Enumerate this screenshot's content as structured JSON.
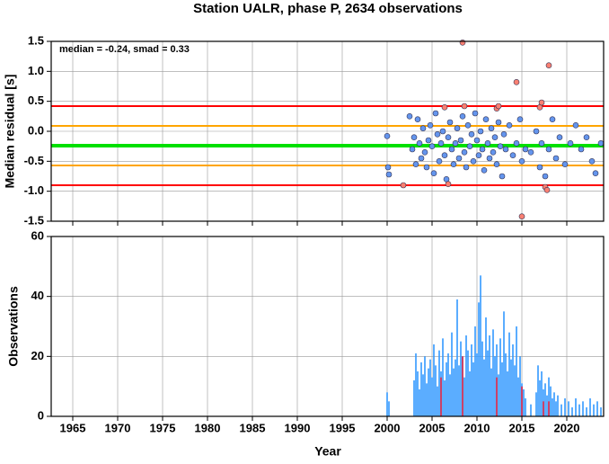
{
  "chart_data": [
    {
      "type": "scatter",
      "title": "Station UALR, phase P, 2634 observations",
      "ylabel": "Median residual [s]",
      "annotation": "median = -0.24, smad = 0.33",
      "xlim": [
        1962.6,
        2024.1
      ],
      "xticks": [
        1965,
        1970,
        1975,
        1980,
        1985,
        1990,
        1995,
        2000,
        2005,
        2010,
        2015,
        2020
      ],
      "ylim": [
        -1.5,
        1.5
      ],
      "yticks": [
        {
          "value": -1.5,
          "label": "-1.5"
        },
        {
          "value": -1,
          "label": "-1.0"
        },
        -0.5,
        {
          "value": 0,
          "label": "0.0"
        },
        0.5,
        {
          "value": 1,
          "label": "1.0"
        },
        1.5
      ],
      "grid": true,
      "reference_lines": [
        {
          "value": 0.42,
          "color": "#ff0000"
        },
        {
          "value": 0.09,
          "color": "#ffa500"
        },
        {
          "value": -0.24,
          "color": "#00e000"
        },
        {
          "value": -0.57,
          "color": "#ffa500"
        },
        {
          "value": -0.9,
          "color": "#ff0000"
        }
      ],
      "series": [
        {
          "color": "#6495ed",
          "x": [
            2000.0,
            2000.1,
            2000.2,
            2002.5,
            2002.8,
            2003.0,
            2003.2,
            2003.4,
            2003.6,
            2003.8,
            2004.0,
            2004.2,
            2004.4,
            2004.6,
            2004.8,
            2005.0,
            2005.2,
            2005.4,
            2005.6,
            2005.8,
            2006.0,
            2006.2,
            2006.4,
            2006.6,
            2006.8,
            2007.0,
            2007.2,
            2007.4,
            2007.6,
            2007.8,
            2008.0,
            2008.2,
            2008.4,
            2008.6,
            2008.8,
            2009.0,
            2009.2,
            2009.4,
            2009.6,
            2009.8,
            2010.0,
            2010.2,
            2010.4,
            2010.6,
            2010.8,
            2011.0,
            2011.2,
            2011.4,
            2011.6,
            2011.8,
            2012.0,
            2012.2,
            2012.4,
            2012.6,
            2012.8,
            2013.0,
            2013.2,
            2013.6,
            2014.0,
            2014.4,
            2014.8,
            2015.0,
            2015.4,
            2016.0,
            2016.6,
            2017.0,
            2017.2,
            2017.6,
            2018.0,
            2018.4,
            2018.8,
            2019.2,
            2019.8,
            2020.4,
            2021.0,
            2021.6,
            2022.2,
            2022.8,
            2023.2,
            2023.8
          ],
          "values": [
            -0.08,
            -0.6,
            -0.72,
            0.25,
            -0.3,
            -0.1,
            -0.55,
            0.2,
            -0.2,
            -0.45,
            0.05,
            -0.35,
            -0.6,
            -0.15,
            0.1,
            -0.25,
            -0.7,
            0.3,
            -0.05,
            -0.5,
            -0.2,
            0.0,
            -0.4,
            -0.8,
            -0.1,
            0.15,
            -0.3,
            -0.55,
            -0.2,
            0.05,
            -0.45,
            -0.15,
            0.25,
            -0.35,
            -0.6,
            0.1,
            -0.25,
            -0.05,
            -0.5,
            0.3,
            -0.15,
            -0.4,
            0.0,
            -0.3,
            -0.65,
            0.2,
            -0.2,
            -0.45,
            0.05,
            -0.35,
            -0.1,
            -0.55,
            0.15,
            -0.25,
            -0.75,
            -0.05,
            -0.3,
            0.1,
            -0.4,
            -0.2,
            0.2,
            -0.5,
            -0.3,
            -0.35,
            0.0,
            -0.6,
            -0.2,
            -0.75,
            -0.3,
            0.2,
            -0.45,
            -0.1,
            -0.55,
            -0.2,
            0.1,
            -0.3,
            -0.1,
            -0.5,
            -0.7,
            -0.2
          ]
        },
        {
          "color": "#fa8072",
          "x": [
            2001.8,
            2006.4,
            2006.8,
            2008.4,
            2008.6,
            2012.2,
            2012.4,
            2014.4,
            2015.0,
            2017.0,
            2017.2,
            2017.6,
            2017.8,
            2018.0
          ],
          "values": [
            -0.9,
            0.4,
            -0.88,
            1.48,
            0.42,
            0.38,
            0.42,
            0.82,
            -1.42,
            0.4,
            0.48,
            -0.93,
            -0.98,
            1.1
          ]
        }
      ]
    },
    {
      "type": "bar",
      "ylabel": "Observations",
      "xlabel": "Year",
      "xlim": [
        1962.6,
        2024.1
      ],
      "xticks": [
        1965,
        1970,
        1975,
        1980,
        1985,
        1990,
        1995,
        2000,
        2005,
        2010,
        2015,
        2020
      ],
      "ylim": [
        0,
        60
      ],
      "yticks": [
        0,
        20,
        40,
        60
      ],
      "grid": true,
      "series": [
        {
          "color": "#3399ff",
          "x": [
            2000.0,
            2000.2,
            2003.0,
            2003.2,
            2003.4,
            2003.6,
            2003.8,
            2004.0,
            2004.2,
            2004.4,
            2004.6,
            2004.8,
            2005.0,
            2005.2,
            2005.4,
            2005.6,
            2005.8,
            2006.0,
            2006.2,
            2006.4,
            2006.6,
            2006.8,
            2007.0,
            2007.2,
            2007.4,
            2007.6,
            2007.8,
            2008.0,
            2008.2,
            2008.4,
            2008.6,
            2008.8,
            2009.0,
            2009.2,
            2009.4,
            2009.6,
            2009.8,
            2010.0,
            2010.2,
            2010.4,
            2010.6,
            2010.8,
            2011.0,
            2011.2,
            2011.4,
            2011.6,
            2011.8,
            2012.0,
            2012.2,
            2012.4,
            2012.6,
            2012.8,
            2013.0,
            2013.2,
            2013.4,
            2013.6,
            2013.8,
            2014.0,
            2014.2,
            2014.4,
            2014.6,
            2014.8,
            2015.0,
            2015.2,
            2015.4,
            2016.0,
            2016.6,
            2016.8,
            2017.0,
            2017.2,
            2017.4,
            2017.6,
            2017.8,
            2018.0,
            2018.2,
            2018.4,
            2018.6,
            2018.8,
            2019.0,
            2019.4,
            2019.8,
            2020.2,
            2020.6,
            2021.0,
            2021.4,
            2021.8,
            2022.2,
            2022.6,
            2023.0,
            2023.4,
            2023.8
          ],
          "values": [
            8,
            5,
            12,
            21,
            15,
            9,
            18,
            14,
            20,
            11,
            16,
            19,
            13,
            24,
            17,
            10,
            22,
            15,
            26,
            12,
            18,
            21,
            14,
            28,
            16,
            19,
            39,
            17,
            25,
            20,
            13,
            27,
            22,
            15,
            24,
            18,
            30,
            21,
            38,
            47,
            25,
            19,
            33,
            22,
            27,
            16,
            29,
            20,
            24,
            14,
            26,
            18,
            35,
            21,
            15,
            28,
            19,
            24,
            17,
            30,
            13,
            20,
            11,
            9,
            6,
            4,
            8,
            17,
            12,
            15,
            9,
            11,
            7,
            13,
            10,
            6,
            8,
            5,
            7,
            4,
            6,
            5,
            3,
            6,
            4,
            5,
            3,
            6,
            4,
            5,
            3
          ]
        },
        {
          "color": "#dd2244",
          "x": [
            2006.0,
            2008.4,
            2012.2,
            2015.0,
            2017.4,
            2018.0
          ],
          "values": [
            13,
            20,
            13,
            10,
            5,
            5
          ]
        }
      ]
    }
  ]
}
